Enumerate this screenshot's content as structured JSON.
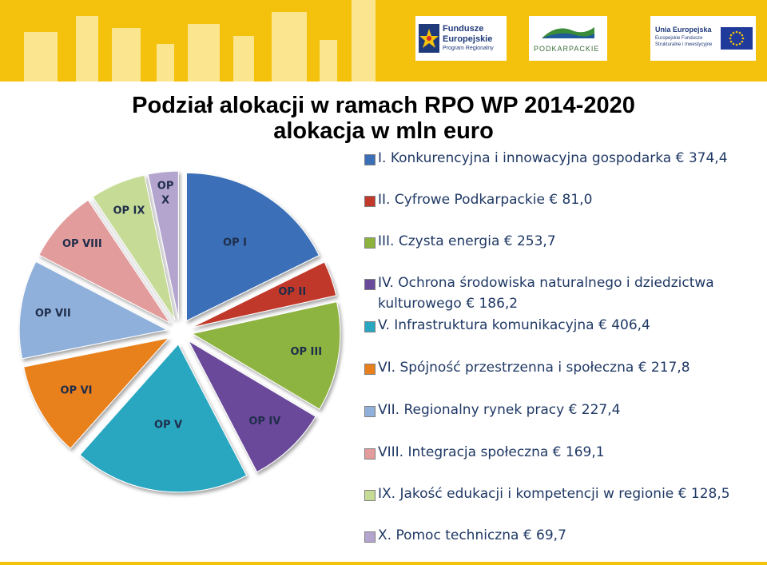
{
  "header": {
    "fe_logo": {
      "line1": "Fundusze",
      "line2": "Europejskie",
      "line3": "Program Regionalny"
    },
    "pk_logo": {
      "text": "PODKARPACKIE"
    },
    "ue_logo": {
      "line1": "Unia Europejska",
      "line2": "Europejskie Fundusze",
      "line3": "Strukturalne i Inwestycyjne"
    }
  },
  "title": {
    "line1": "Podział alokacji w ramach RPO WP 2014-2020",
    "line2": "alokacja w mln euro"
  },
  "legend": [
    {
      "line1": "I. Konkurencyjna i innowacyjna gospodarka  € 374,4",
      "color": "#3a6fb8"
    },
    {
      "line1": "II. Cyfrowe Podkarpackie  € 81,0",
      "color": "#c0392b"
    },
    {
      "line1": "III. Czysta energia  € 253,7",
      "color": "#8db33f"
    },
    {
      "line1": "IV. Ochrona środowiska naturalnego i dziedzictwa",
      "line2": "kulturowego  € 186,2",
      "color": "#6a4a9a"
    },
    {
      "line1": "V. Infrastruktura komunikacyjna  € 406,4",
      "color": "#2aa7c0"
    },
    {
      "line1": "VI. Spójność przestrzenna i społeczna € 217,8",
      "color": "#e8801e"
    },
    {
      "line1": "VII. Regionalny rynek pracy  € 227,4",
      "color": "#8fb0da"
    },
    {
      "line1": "VIII. Integracja społeczna  € 169,1",
      "color": "#e29c9c"
    },
    {
      "line1": "IX. Jakość edukacji i kompetencji w regionie  € 128,5",
      "color": "#c6dc96"
    },
    {
      "line1": "X. Pomoc techniczna   € 69,7",
      "color": "#b4a5cf"
    }
  ],
  "chart_data": {
    "type": "pie",
    "title": "Podział alokacji w ramach RPO WP 2014-2020 alokacja w mln euro",
    "exploded": true,
    "slices": [
      {
        "label": "OP I",
        "value": 374.4,
        "color": "#3a6fb8"
      },
      {
        "label": "OP II",
        "value": 81.0,
        "color": "#c0392b"
      },
      {
        "label": "OP III",
        "value": 253.7,
        "color": "#8db33f"
      },
      {
        "label": "OP IV",
        "value": 186.2,
        "color": "#6a4a9a"
      },
      {
        "label": "OP V",
        "value": 406.4,
        "color": "#2aa7c0"
      },
      {
        "label": "OP VI",
        "value": 217.8,
        "color": "#e8801e"
      },
      {
        "label": "OP VII",
        "value": 227.4,
        "color": "#8fb0da"
      },
      {
        "label": "OP VIII",
        "value": 169.1,
        "color": "#e29c9c"
      },
      {
        "label": "OP IX",
        "value": 128.5,
        "color": "#c6dc96"
      },
      {
        "label": "OP X",
        "value": 69.7,
        "color": "#b4a5cf"
      }
    ]
  }
}
